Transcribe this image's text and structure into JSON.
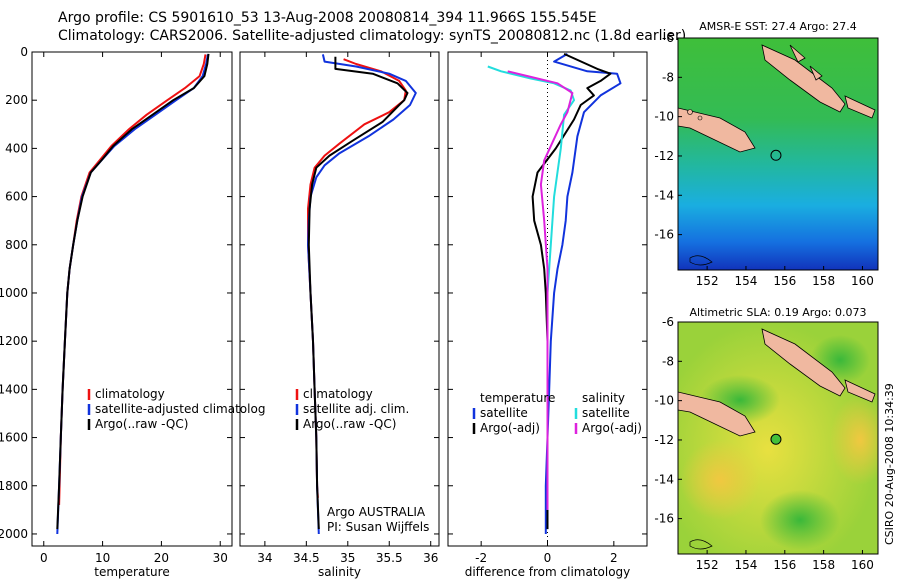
{
  "header": {
    "line1": "Argo profile: CS 5901610_53 13-Aug-2008 20080814_394 11.966S 155.545E",
    "line2": "Climatology: CARS2006. Satellite-adjusted climatology: synTS_20080812.nc (1.8d earlier)"
  },
  "colors": {
    "climatology": "#ee1111",
    "satellite_adj": "#1133dd",
    "argo": "#000000",
    "sal_satellite": "#22dddd",
    "sal_argo": "#dd22dd"
  },
  "annotations": {
    "argo_country": "Argo AUSTRALIA",
    "pi": "PI: Susan Wijffels",
    "timestamp": "CSIRO 20-Aug-2008 10:34:39"
  },
  "chart_data": [
    {
      "type": "line",
      "id": "temperature",
      "xlabel": "temperature",
      "ylabel": "",
      "xlim": [
        -2,
        32
      ],
      "ylim": [
        2050,
        0
      ],
      "xticks": [
        0,
        10,
        20,
        30
      ],
      "yticks": [
        0,
        200,
        400,
        600,
        800,
        1000,
        1200,
        1400,
        1600,
        1800,
        2000
      ],
      "legend": [
        "climatology",
        "satellite-adjusted climatolog",
        "Argo(..raw -QC)"
      ],
      "series": [
        {
          "name": "climatology",
          "color": "climatology",
          "points": [
            [
              27.5,
              10
            ],
            [
              27.2,
              50
            ],
            [
              26.5,
              100
            ],
            [
              24,
              150
            ],
            [
              21,
              200
            ],
            [
              17.5,
              260
            ],
            [
              14.5,
              320
            ],
            [
              11.5,
              390
            ],
            [
              9.5,
              450
            ],
            [
              7.8,
              500
            ],
            [
              6.4,
              600
            ],
            [
              5.6,
              700
            ],
            [
              5,
              800
            ],
            [
              4.4,
              900
            ],
            [
              4,
              1000
            ],
            [
              3.6,
              1200
            ],
            [
              3.2,
              1400
            ],
            [
              2.9,
              1600
            ],
            [
              2.7,
              1800
            ],
            [
              2.6,
              1880
            ]
          ]
        },
        {
          "name": "satellite-adjusted climatolog",
          "color": "satellite_adj",
          "points": [
            [
              27.9,
              10
            ],
            [
              27.6,
              50
            ],
            [
              27,
              100
            ],
            [
              25.5,
              150
            ],
            [
              22.5,
              200
            ],
            [
              19,
              260
            ],
            [
              15.5,
              320
            ],
            [
              12,
              390
            ],
            [
              9.8,
              450
            ],
            [
              8,
              500
            ],
            [
              6.5,
              600
            ],
            [
              5.7,
              700
            ],
            [
              5,
              800
            ],
            [
              4.4,
              900
            ],
            [
              4,
              1000
            ],
            [
              3.6,
              1200
            ],
            [
              3.2,
              1400
            ],
            [
              2.9,
              1600
            ],
            [
              2.6,
              1800
            ],
            [
              2.3,
              2000
            ]
          ]
        },
        {
          "name": "Argo(..raw -QC)",
          "color": "argo",
          "points": [
            [
              28,
              8
            ],
            [
              27.8,
              50
            ],
            [
              27.3,
              100
            ],
            [
              25.5,
              150
            ],
            [
              22,
              200
            ],
            [
              18.5,
              260
            ],
            [
              15,
              320
            ],
            [
              11.8,
              390
            ],
            [
              9.8,
              450
            ],
            [
              8,
              500
            ],
            [
              6.6,
              600
            ],
            [
              5.7,
              700
            ],
            [
              5,
              800
            ],
            [
              4.4,
              900
            ],
            [
              4,
              1000
            ],
            [
              3.6,
              1200
            ],
            [
              3.2,
              1400
            ],
            [
              2.9,
              1600
            ],
            [
              2.6,
              1800
            ],
            [
              2.3,
              1980
            ]
          ]
        }
      ]
    },
    {
      "type": "line",
      "id": "salinity",
      "xlabel": "salinity",
      "ylabel": "",
      "xlim": [
        33.7,
        36.1
      ],
      "ylim": [
        2050,
        0
      ],
      "xticks": [
        34,
        34.5,
        35,
        35.5,
        36
      ],
      "yticks": [
        0,
        200,
        400,
        600,
        800,
        1000,
        1200,
        1400,
        1600,
        1800,
        2000
      ],
      "legend": [
        "climatology",
        "satellite adj. clim.",
        "Argo(..raw -QC)"
      ],
      "series": [
        {
          "name": "climatology",
          "color": "climatology",
          "points": [
            [
              34.95,
              30
            ],
            [
              35.1,
              50
            ],
            [
              35.4,
              80
            ],
            [
              35.62,
              120
            ],
            [
              35.7,
              160
            ],
            [
              35.68,
              200
            ],
            [
              35.5,
              250
            ],
            [
              35.2,
              300
            ],
            [
              34.9,
              380
            ],
            [
              34.72,
              430
            ],
            [
              34.6,
              480
            ],
            [
              34.55,
              550
            ],
            [
              34.52,
              650
            ],
            [
              34.52,
              800
            ],
            [
              34.55,
              1000
            ],
            [
              34.58,
              1200
            ],
            [
              34.6,
              1400
            ],
            [
              34.62,
              1600
            ],
            [
              34.63,
              1800
            ],
            [
              34.64,
              1850
            ]
          ]
        },
        {
          "name": "satellite adj. clim.",
          "color": "satellite_adj",
          "points": [
            [
              34.7,
              10
            ],
            [
              34.72,
              40
            ],
            [
              35.1,
              60
            ],
            [
              35.5,
              90
            ],
            [
              35.7,
              120
            ],
            [
              35.82,
              170
            ],
            [
              35.75,
              220
            ],
            [
              35.55,
              280
            ],
            [
              35.25,
              350
            ],
            [
              34.9,
              420
            ],
            [
              34.72,
              470
            ],
            [
              34.62,
              520
            ],
            [
              34.55,
              600
            ],
            [
              34.53,
              700
            ],
            [
              34.52,
              800
            ],
            [
              34.55,
              1000
            ],
            [
              34.58,
              1200
            ],
            [
              34.6,
              1400
            ],
            [
              34.62,
              1600
            ],
            [
              34.63,
              1800
            ],
            [
              34.65,
              2000
            ]
          ]
        },
        {
          "name": "Argo(..raw -QC)",
          "color": "argo",
          "points": [
            [
              34.85,
              20
            ],
            [
              34.85,
              70
            ],
            [
              35.3,
              90
            ],
            [
              35.6,
              130
            ],
            [
              35.72,
              170
            ],
            [
              35.68,
              200
            ],
            [
              35.62,
              220
            ],
            [
              35.42,
              290
            ],
            [
              35.05,
              370
            ],
            [
              34.78,
              430
            ],
            [
              34.62,
              480
            ],
            [
              34.57,
              550
            ],
            [
              34.54,
              650
            ],
            [
              34.53,
              800
            ],
            [
              34.55,
              1000
            ],
            [
              34.58,
              1200
            ],
            [
              34.6,
              1400
            ],
            [
              34.62,
              1600
            ],
            [
              34.63,
              1800
            ],
            [
              34.65,
              1980
            ]
          ]
        }
      ]
    },
    {
      "type": "line",
      "id": "difference",
      "xlabel": "difference from climatology",
      "ylabel": "",
      "xlim": [
        -3,
        3
      ],
      "ylim": [
        2050,
        0
      ],
      "xticks": [
        -2,
        0,
        2
      ],
      "xtick_labels": [
        "-2",
        "0",
        "2"
      ],
      "yticks": [
        0,
        200,
        400,
        600,
        800,
        1000,
        1200,
        1400,
        1600,
        1800,
        2000
      ],
      "legend_headers": [
        "temperature",
        "salinity"
      ],
      "legend": [
        "satellite",
        "Argo(-adj)",
        "satellite",
        "Argo(-adj)"
      ],
      "series": [
        {
          "name": "temperature satellite",
          "color": "satellite_adj",
          "points": [
            [
              0.6,
              8
            ],
            [
              0.2,
              40
            ],
            [
              1.2,
              80
            ],
            [
              2.1,
              90
            ],
            [
              2.2,
              130
            ],
            [
              1.6,
              180
            ],
            [
              1.1,
              250
            ],
            [
              0.9,
              350
            ],
            [
              0.75,
              500
            ],
            [
              0.6,
              600
            ],
            [
              0.55,
              700
            ],
            [
              0.45,
              800
            ],
            [
              0.3,
              900
            ],
            [
              0.2,
              1000
            ],
            [
              0.1,
              1200
            ],
            [
              0.05,
              1400
            ],
            [
              0,
              1600
            ],
            [
              -0.05,
              1800
            ],
            [
              -0.05,
              2000
            ]
          ]
        },
        {
          "name": "temperature Argo(-adj)",
          "color": "argo",
          "points": [
            [
              0.5,
              8
            ],
            [
              1.5,
              70
            ],
            [
              1.9,
              90
            ],
            [
              1.6,
              120
            ],
            [
              1.2,
              150
            ],
            [
              1.4,
              180
            ],
            [
              1.0,
              220
            ],
            [
              0.8,
              280
            ],
            [
              0.25,
              400
            ],
            [
              -0.3,
              500
            ],
            [
              -0.45,
              600
            ],
            [
              -0.4,
              700
            ],
            [
              -0.2,
              800
            ],
            [
              -0.1,
              900
            ],
            [
              -0.05,
              1000
            ],
            [
              0,
              1200
            ],
            [
              0,
              1400
            ],
            [
              0,
              1600
            ],
            [
              0,
              1800
            ],
            [
              0,
              1980
            ]
          ]
        },
        {
          "name": "salinity satellite",
          "color": "sal_satellite",
          "points": [
            [
              -1.8,
              60
            ],
            [
              -1.4,
              80
            ],
            [
              -0.5,
              110
            ],
            [
              0.2,
              130
            ],
            [
              0.7,
              160
            ],
            [
              0.8,
              200
            ],
            [
              0.5,
              260
            ],
            [
              0.4,
              400
            ],
            [
              0.2,
              600
            ],
            [
              0.1,
              800
            ],
            [
              0,
              1000
            ],
            [
              0,
              1200
            ],
            [
              0,
              1400
            ],
            [
              0,
              1600
            ],
            [
              0,
              1800
            ],
            [
              0,
              1900
            ]
          ]
        },
        {
          "name": "salinity Argo(-adj)",
          "color": "sal_argo",
          "points": [
            [
              -1.2,
              80
            ],
            [
              -0.6,
              100
            ],
            [
              0.3,
              130
            ],
            [
              0.75,
              170
            ],
            [
              0.6,
              250
            ],
            [
              0.4,
              300
            ],
            [
              -0.1,
              450
            ],
            [
              -0.2,
              550
            ],
            [
              -0.1,
              700
            ],
            [
              0,
              900
            ],
            [
              0,
              1200
            ],
            [
              0,
              1400
            ],
            [
              0,
              1600
            ],
            [
              0,
              1800
            ],
            [
              0,
              1900
            ]
          ]
        }
      ]
    },
    {
      "type": "heatmap",
      "id": "sst_map",
      "title": "AMSR-E SST: 27.4  Argo: 27.4",
      "xlim": [
        150.5,
        160.8
      ],
      "ylim": [
        -17.8,
        -6
      ],
      "xticks": [
        152,
        154,
        156,
        158,
        160
      ],
      "yticks": [
        -6,
        -8,
        -10,
        -12,
        -14,
        -16
      ],
      "marker": {
        "lon": 155.545,
        "lat": -11.966,
        "filled": false
      }
    },
    {
      "type": "heatmap",
      "id": "sla_map",
      "title": "Altimetric SLA: 0.19  Argo: 0.073",
      "xlim": [
        150.5,
        160.8
      ],
      "ylim": [
        -17.8,
        -6
      ],
      "xticks": [
        152,
        154,
        156,
        158,
        160
      ],
      "yticks": [
        -6,
        -8,
        -10,
        -12,
        -14,
        -16
      ],
      "marker": {
        "lon": 155.545,
        "lat": -11.966,
        "filled": true
      }
    }
  ]
}
